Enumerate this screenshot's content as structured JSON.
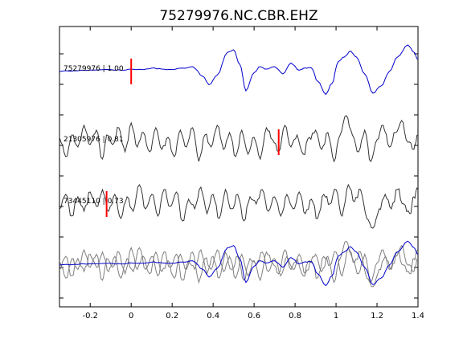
{
  "chart_data": {
    "type": "line",
    "title": "75279976.NC.CBR.EHZ",
    "xlabel": "",
    "ylabel": "",
    "xlim": [
      -0.35,
      1.4
    ],
    "x_ticks": [
      -0.2,
      0,
      0.2,
      0.4,
      0.6,
      0.8,
      1,
      1.2,
      1.4
    ],
    "x_tick_labels": [
      "-0.2",
      "0",
      "0.2",
      "0.4",
      "0.6",
      "0.8",
      "1",
      "1.2",
      "1.4"
    ],
    "grid": false,
    "legend": "none",
    "colors": {
      "reference": "#0000cc",
      "comparison": "#333333",
      "overlay_gray": "#7f7f7f",
      "pick": "#ff0000"
    },
    "traces": [
      {
        "label": "75279976 | 1.00",
        "id": "75279976",
        "correlation": 1.0,
        "pick_time": 0.0,
        "color": "#0000cc",
        "keypoints": [
          [
            -0.35,
            0.0
          ],
          [
            -0.28,
            0.03
          ],
          [
            -0.2,
            0.06
          ],
          [
            -0.1,
            0.08
          ],
          [
            -0.05,
            0.05
          ],
          [
            0.0,
            0.1
          ],
          [
            0.05,
            0.08
          ],
          [
            0.1,
            0.14
          ],
          [
            0.15,
            0.1
          ],
          [
            0.2,
            0.08
          ],
          [
            0.25,
            0.14
          ],
          [
            0.3,
            0.2
          ],
          [
            0.35,
            -0.2
          ],
          [
            0.38,
            -0.55
          ],
          [
            0.42,
            -0.15
          ],
          [
            0.47,
            0.8
          ],
          [
            0.5,
            0.9
          ],
          [
            0.53,
            0.3
          ],
          [
            0.56,
            -0.8
          ],
          [
            0.6,
            -0.05
          ],
          [
            0.63,
            0.2
          ],
          [
            0.66,
            0.1
          ],
          [
            0.7,
            0.2
          ],
          [
            0.74,
            -0.1
          ],
          [
            0.78,
            0.35
          ],
          [
            0.82,
            0.05
          ],
          [
            0.85,
            0.15
          ],
          [
            0.88,
            0.15
          ],
          [
            0.91,
            -0.4
          ],
          [
            0.95,
            -0.95
          ],
          [
            0.98,
            -0.5
          ],
          [
            1.01,
            0.4
          ],
          [
            1.04,
            0.6
          ],
          [
            1.07,
            0.85
          ],
          [
            1.1,
            0.6
          ],
          [
            1.14,
            -0.1
          ],
          [
            1.18,
            -0.9
          ],
          [
            1.22,
            -0.6
          ],
          [
            1.26,
            0.0
          ],
          [
            1.3,
            0.6
          ],
          [
            1.35,
            1.1
          ],
          [
            1.38,
            0.8
          ],
          [
            1.4,
            0.5
          ]
        ]
      },
      {
        "label": "21305976 | 0.81",
        "id": "21305976",
        "correlation": 0.81,
        "pick_time": 0.72,
        "color": "#333333",
        "keypoints": [
          [
            -0.35,
            0.2
          ],
          [
            -0.32,
            -0.6
          ],
          [
            -0.29,
            0.3
          ],
          [
            -0.26,
            -0.2
          ],
          [
            -0.23,
            0.7
          ],
          [
            -0.2,
            -0.1
          ],
          [
            -0.17,
            0.5
          ],
          [
            -0.14,
            -0.7
          ],
          [
            -0.12,
            0.3
          ],
          [
            -0.09,
            -0.1
          ],
          [
            -0.06,
            0.6
          ],
          [
            -0.03,
            -0.4
          ],
          [
            0.0,
            0.8
          ],
          [
            0.03,
            -0.2
          ],
          [
            0.06,
            0.4
          ],
          [
            0.09,
            -0.4
          ],
          [
            0.12,
            0.6
          ],
          [
            0.15,
            -0.3
          ],
          [
            0.18,
            0.2
          ],
          [
            0.21,
            -0.6
          ],
          [
            0.24,
            0.5
          ],
          [
            0.27,
            -0.2
          ],
          [
            0.3,
            0.6
          ],
          [
            0.33,
            -0.8
          ],
          [
            0.36,
            0.3
          ],
          [
            0.39,
            -0.2
          ],
          [
            0.42,
            0.7
          ],
          [
            0.45,
            -0.3
          ],
          [
            0.48,
            0.4
          ],
          [
            0.51,
            -0.6
          ],
          [
            0.54,
            0.5
          ],
          [
            0.57,
            -0.5
          ],
          [
            0.6,
            0.2
          ],
          [
            0.63,
            -0.7
          ],
          [
            0.66,
            0.6
          ],
          [
            0.69,
            0.1
          ],
          [
            0.72,
            -0.4
          ],
          [
            0.75,
            0.7
          ],
          [
            0.78,
            -0.2
          ],
          [
            0.81,
            0.3
          ],
          [
            0.84,
            -0.5
          ],
          [
            0.87,
            0.2
          ],
          [
            0.9,
            0.5
          ],
          [
            0.93,
            -0.3
          ],
          [
            0.96,
            0.4
          ],
          [
            0.99,
            -0.8
          ],
          [
            1.02,
            0.3
          ],
          [
            1.05,
            1.1
          ],
          [
            1.08,
            0.3
          ],
          [
            1.11,
            -0.4
          ],
          [
            1.14,
            0.5
          ],
          [
            1.17,
            -0.8
          ],
          [
            1.2,
            0.1
          ],
          [
            1.23,
            0.7
          ],
          [
            1.26,
            -0.2
          ],
          [
            1.29,
            0.4
          ],
          [
            1.32,
            0.9
          ],
          [
            1.35,
            0.0
          ],
          [
            1.38,
            -0.3
          ],
          [
            1.4,
            0.3
          ]
        ]
      },
      {
        "label": "73445110 | 0.73",
        "id": "73445110",
        "correlation": 0.73,
        "pick_time": -0.12,
        "color": "#333333",
        "keypoints": [
          [
            -0.35,
            -0.2
          ],
          [
            -0.32,
            0.4
          ],
          [
            -0.29,
            -0.5
          ],
          [
            -0.26,
            0.3
          ],
          [
            -0.23,
            -0.3
          ],
          [
            -0.2,
            0.5
          ],
          [
            -0.17,
            -0.1
          ],
          [
            -0.14,
            0.6
          ],
          [
            -0.11,
            -0.3
          ],
          [
            -0.08,
            0.4
          ],
          [
            -0.05,
            -0.6
          ],
          [
            -0.02,
            0.3
          ],
          [
            0.01,
            -0.3
          ],
          [
            0.04,
            0.8
          ],
          [
            0.07,
            -0.2
          ],
          [
            0.1,
            0.4
          ],
          [
            0.13,
            -0.5
          ],
          [
            0.16,
            0.6
          ],
          [
            0.19,
            -0.1
          ],
          [
            0.22,
            0.5
          ],
          [
            0.25,
            -0.7
          ],
          [
            0.28,
            0.2
          ],
          [
            0.31,
            -0.2
          ],
          [
            0.34,
            0.7
          ],
          [
            0.37,
            -0.4
          ],
          [
            0.4,
            0.4
          ],
          [
            0.43,
            -0.6
          ],
          [
            0.46,
            0.6
          ],
          [
            0.49,
            -0.2
          ],
          [
            0.52,
            0.4
          ],
          [
            0.55,
            -0.7
          ],
          [
            0.58,
            0.3
          ],
          [
            0.61,
            0.0
          ],
          [
            0.64,
            0.6
          ],
          [
            0.67,
            -0.3
          ],
          [
            0.7,
            0.3
          ],
          [
            0.73,
            -0.5
          ],
          [
            0.76,
            0.4
          ],
          [
            0.79,
            -0.2
          ],
          [
            0.82,
            0.5
          ],
          [
            0.85,
            -0.4
          ],
          [
            0.88,
            0.2
          ],
          [
            0.91,
            -0.6
          ],
          [
            0.94,
            0.4
          ],
          [
            0.97,
            0.0
          ],
          [
            1.0,
            0.6
          ],
          [
            1.03,
            -0.5
          ],
          [
            1.06,
            0.8
          ],
          [
            1.09,
            0.1
          ],
          [
            1.12,
            0.6
          ],
          [
            1.15,
            -0.6
          ],
          [
            1.18,
            -1.0
          ],
          [
            1.21,
            -0.2
          ],
          [
            1.24,
            0.4
          ],
          [
            1.27,
            -0.2
          ],
          [
            1.3,
            0.6
          ],
          [
            1.33,
            0.0
          ],
          [
            1.36,
            -0.4
          ],
          [
            1.38,
            0.3
          ],
          [
            1.4,
            0.6
          ]
        ]
      }
    ],
    "overlay": {
      "description": "all traces superimposed",
      "series_colors": [
        "#0000cc",
        "#7f7f7f",
        "#7f7f7f"
      ]
    }
  }
}
